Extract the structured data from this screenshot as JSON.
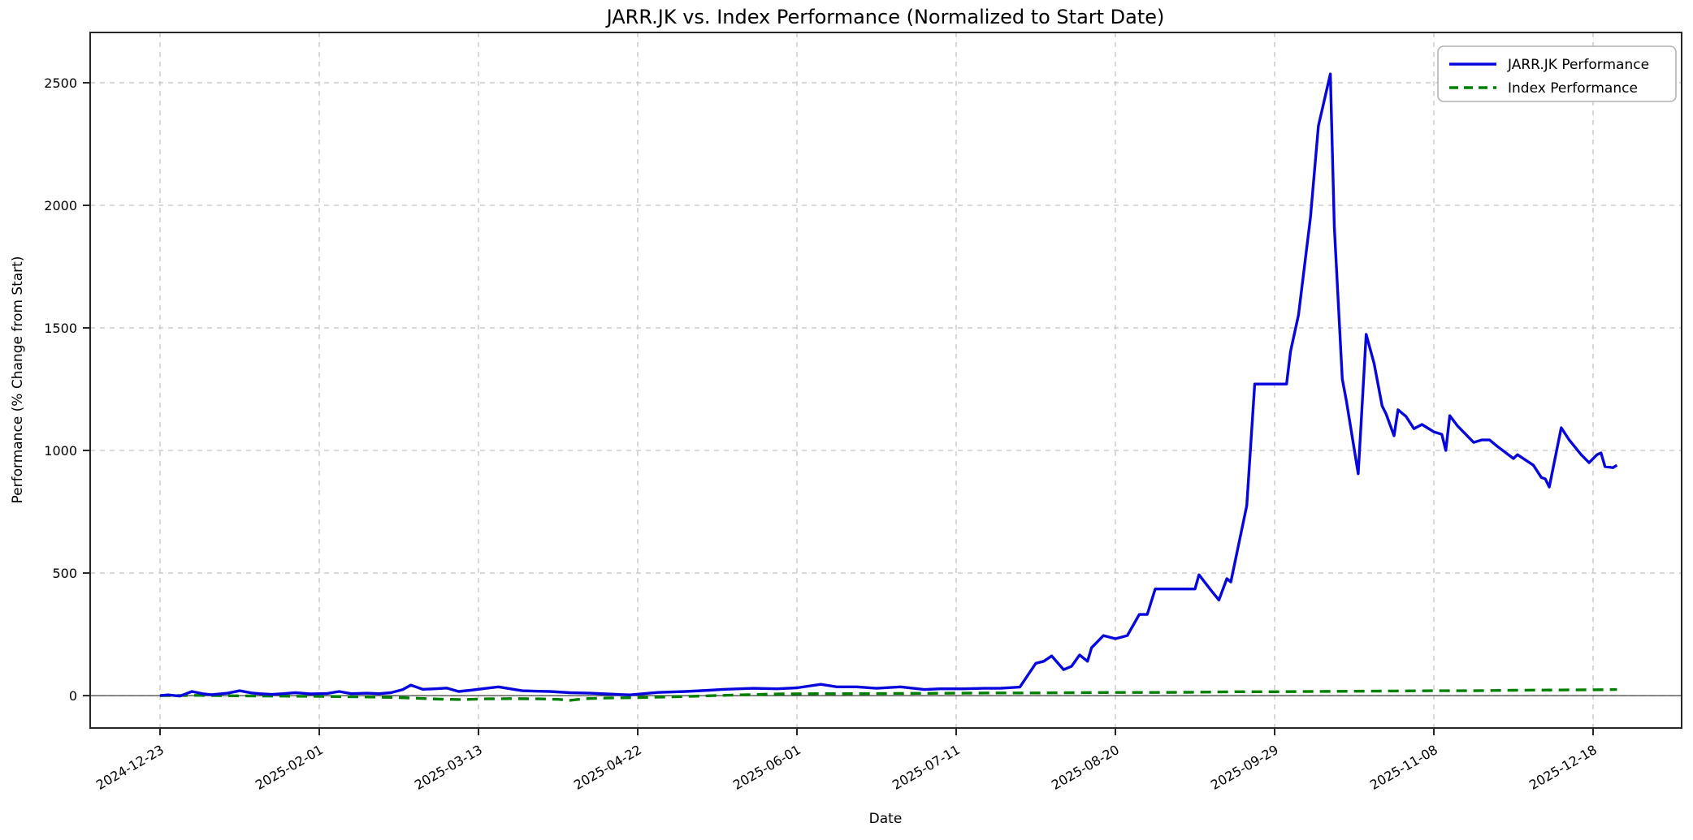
{
  "chart_data": {
    "type": "line",
    "title": "JARR.JK vs. Index Performance (Normalized to Start Date)",
    "xlabel": "Date",
    "ylabel": "Performance (% Change from Start)",
    "legend_position": "upper right",
    "grid": true,
    "background": "#ffffff",
    "grid_color": "#cccccc",
    "spine_color": "#262626",
    "zero_line_color": "#444444",
    "ylim": [
      -132,
      2705
    ],
    "y_ticks": [
      0,
      500,
      1000,
      1500,
      2000,
      2500
    ],
    "x_range_days": [
      0,
      366
    ],
    "x_start_label": "2024-12-23",
    "x_tick_days": [
      0,
      40,
      80,
      120,
      160,
      200,
      240,
      280,
      320,
      360
    ],
    "x_tick_labels": [
      "2024-12-23",
      "2025-02-01",
      "2025-03-13",
      "2025-04-22",
      "2025-06-01",
      "2025-07-11",
      "2025-08-20",
      "2025-09-29",
      "2025-11-08",
      "2025-12-18"
    ],
    "series": [
      {
        "name": "JARR.JK Performance",
        "color": "#0606dd",
        "style": "solid",
        "points": [
          [
            0,
            0
          ],
          [
            2,
            3
          ],
          [
            5,
            -2
          ],
          [
            8,
            17
          ],
          [
            11,
            7
          ],
          [
            13,
            4
          ],
          [
            17,
            10
          ],
          [
            20,
            20
          ],
          [
            23,
            11
          ],
          [
            25,
            8
          ],
          [
            28,
            5
          ],
          [
            31,
            8
          ],
          [
            34,
            12
          ],
          [
            38,
            7
          ],
          [
            42,
            9
          ],
          [
            45,
            17
          ],
          [
            48,
            8
          ],
          [
            52,
            10
          ],
          [
            55,
            8
          ],
          [
            58,
            12
          ],
          [
            61,
            25
          ],
          [
            63,
            43
          ],
          [
            66,
            26
          ],
          [
            69,
            28
          ],
          [
            72,
            31
          ],
          [
            75,
            17
          ],
          [
            78,
            22
          ],
          [
            82,
            30
          ],
          [
            85,
            36
          ],
          [
            88,
            28
          ],
          [
            91,
            20
          ],
          [
            95,
            18
          ],
          [
            98,
            17
          ],
          [
            103,
            12
          ],
          [
            108,
            10
          ],
          [
            112,
            7
          ],
          [
            118,
            3
          ],
          [
            125,
            13
          ],
          [
            132,
            17
          ],
          [
            138,
            22
          ],
          [
            142,
            26
          ],
          [
            149,
            30
          ],
          [
            155,
            28
          ],
          [
            160,
            32
          ],
          [
            166,
            46
          ],
          [
            170,
            36
          ],
          [
            175,
            36
          ],
          [
            180,
            30
          ],
          [
            186,
            36
          ],
          [
            192,
            25
          ],
          [
            196,
            28
          ],
          [
            202,
            28
          ],
          [
            207,
            30
          ],
          [
            211,
            30
          ],
          [
            216,
            35
          ],
          [
            220,
            132
          ],
          [
            222,
            140
          ],
          [
            224,
            162
          ],
          [
            227,
            106
          ],
          [
            229,
            120
          ],
          [
            231,
            166
          ],
          [
            233,
            140
          ],
          [
            234,
            195
          ],
          [
            237,
            245
          ],
          [
            240,
            232
          ],
          [
            243,
            245
          ],
          [
            246,
            331
          ],
          [
            248,
            331
          ],
          [
            250,
            435
          ],
          [
            255,
            435
          ],
          [
            260,
            435
          ],
          [
            261,
            493
          ],
          [
            264,
            430
          ],
          [
            266,
            390
          ],
          [
            268,
            477
          ],
          [
            269,
            464
          ],
          [
            273,
            775
          ],
          [
            275,
            1271
          ],
          [
            279,
            1271
          ],
          [
            283,
            1271
          ],
          [
            284,
            1404
          ],
          [
            286,
            1553
          ],
          [
            289,
            1950
          ],
          [
            291,
            2324
          ],
          [
            294,
            2536
          ],
          [
            295,
            1911
          ],
          [
            297,
            1291
          ],
          [
            298,
            1205
          ],
          [
            301,
            905
          ],
          [
            303,
            1474
          ],
          [
            305,
            1354
          ],
          [
            307,
            1182
          ],
          [
            308,
            1149
          ],
          [
            310,
            1060
          ],
          [
            311,
            1166
          ],
          [
            313,
            1139
          ],
          [
            315,
            1089
          ],
          [
            317,
            1106
          ],
          [
            320,
            1076
          ],
          [
            322,
            1066
          ],
          [
            323,
            1000
          ],
          [
            324,
            1142
          ],
          [
            326,
            1099
          ],
          [
            330,
            1033
          ],
          [
            332,
            1043
          ],
          [
            334,
            1043
          ],
          [
            336,
            1016
          ],
          [
            340,
            967
          ],
          [
            341,
            983
          ],
          [
            345,
            940
          ],
          [
            347,
            890
          ],
          [
            348,
            884
          ],
          [
            349,
            851
          ],
          [
            352,
            1093
          ],
          [
            354,
            1043
          ],
          [
            355,
            1023
          ],
          [
            357,
            983
          ],
          [
            359,
            950
          ],
          [
            361,
            983
          ],
          [
            362,
            990
          ],
          [
            363,
            934
          ],
          [
            365,
            930
          ],
          [
            366,
            940
          ]
        ]
      },
      {
        "name": "Index Performance",
        "color": "#008000",
        "style": "dashed",
        "points": [
          [
            0,
            0
          ],
          [
            10,
            1
          ],
          [
            20,
            -1
          ],
          [
            30,
            -2
          ],
          [
            41,
            -3
          ],
          [
            50,
            -5
          ],
          [
            60,
            -8
          ],
          [
            70,
            -14
          ],
          [
            76,
            -16
          ],
          [
            82,
            -13
          ],
          [
            88,
            -12
          ],
          [
            95,
            -13
          ],
          [
            100,
            -15
          ],
          [
            103,
            -19
          ],
          [
            107,
            -12
          ],
          [
            112,
            -10
          ],
          [
            120,
            -8
          ],
          [
            129,
            -5
          ],
          [
            139,
            0
          ],
          [
            148,
            4
          ],
          [
            156,
            7
          ],
          [
            165,
            8
          ],
          [
            175,
            8
          ],
          [
            188,
            9
          ],
          [
            200,
            10
          ],
          [
            210,
            11
          ],
          [
            220,
            11
          ],
          [
            230,
            12
          ],
          [
            240,
            13
          ],
          [
            250,
            13
          ],
          [
            260,
            14
          ],
          [
            270,
            16
          ],
          [
            280,
            16
          ],
          [
            290,
            17
          ],
          [
            300,
            18
          ],
          [
            310,
            19
          ],
          [
            320,
            20
          ],
          [
            330,
            20
          ],
          [
            340,
            22
          ],
          [
            350,
            23
          ],
          [
            360,
            24
          ],
          [
            366,
            25
          ]
        ]
      }
    ]
  }
}
